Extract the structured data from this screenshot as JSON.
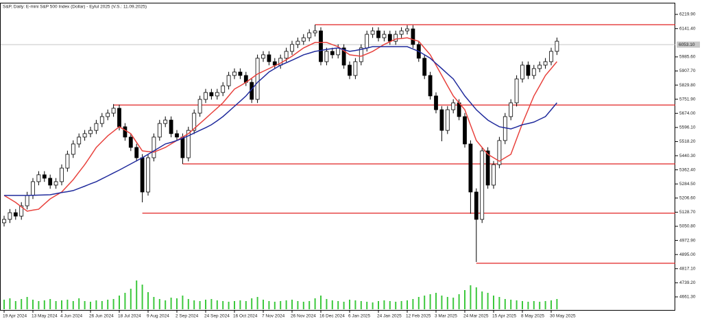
{
  "chart_data": {
    "type": "candlestick",
    "title": "S&P, Daily:  E-mini S&P 500 Index (Dollar) - Eylul 2025 (V.S.: 11.09.2025)",
    "categories": [
      "19 Apr 2024",
      null,
      null,
      null,
      null,
      "13 May 2024",
      null,
      null,
      null,
      null,
      "4 Jun 2024",
      null,
      null,
      null,
      null,
      "26 Jun 2024",
      null,
      null,
      null,
      null,
      "18 Jul 2024",
      null,
      null,
      null,
      null,
      "9 Aug 2024",
      null,
      null,
      null,
      null,
      "2 Sep 2024",
      null,
      null,
      null,
      null,
      "24 Sep 2024",
      null,
      null,
      null,
      null,
      "16 Oct 2024",
      null,
      null,
      null,
      null,
      "7 Nov 2024",
      null,
      null,
      null,
      null,
      "26 Nov 2024",
      null,
      null,
      null,
      null,
      "16 Dec 2024",
      null,
      null,
      null,
      null,
      "6 Jan 2025",
      null,
      null,
      null,
      null,
      "24 Jan 2025",
      null,
      null,
      null,
      null,
      "12 Feb 2025",
      null,
      null,
      null,
      null,
      "3 Mar 2025",
      null,
      null,
      null,
      null,
      "24 Mar 2025",
      null,
      null,
      null,
      null,
      "15 Apr 2025",
      null,
      null,
      null,
      null,
      "8 May 2025",
      null,
      null,
      null,
      null,
      "30 May 2025",
      null
    ],
    "open": [
      5070,
      5089,
      5126,
      5107,
      5164,
      5221,
      5297,
      5335,
      5316,
      5278,
      5297,
      5372,
      5448,
      5505,
      5543,
      5562,
      5580,
      5618,
      5656,
      5675,
      5702,
      5600,
      5543,
      5486,
      5429,
      5240,
      5429,
      5543,
      5618,
      5637,
      5562,
      5543,
      5429,
      5580,
      5675,
      5751,
      5789,
      5770,
      5789,
      5826,
      5883,
      5902,
      5883,
      5845,
      5751,
      5978,
      5997,
      5959,
      5940,
      5978,
      6016,
      6054,
      6072,
      6091,
      6118,
      6129,
      5959,
      6016,
      5997,
      6035,
      5940,
      5883,
      5959,
      6035,
      6110,
      6129,
      6091,
      6110,
      6072,
      6110,
      6129,
      6140,
      6054,
      5978,
      5883,
      5770,
      5694,
      5580,
      5694,
      5732,
      5656,
      5505,
      5240,
      5089,
      5467,
      5278,
      5391,
      5524,
      5656,
      5732,
      5864,
      5940,
      5883,
      5921,
      5940,
      5959,
      6016
    ],
    "high": [
      5109,
      5146,
      5146,
      5184,
      5241,
      5317,
      5355,
      5355,
      5336,
      5317,
      5392,
      5468,
      5525,
      5563,
      5582,
      5600,
      5638,
      5676,
      5695,
      5725,
      5722,
      5620,
      5563,
      5506,
      5449,
      5449,
      5563,
      5638,
      5657,
      5657,
      5582,
      5563,
      5600,
      5695,
      5771,
      5809,
      5809,
      5809,
      5846,
      5903,
      5922,
      5922,
      5903,
      5865,
      5998,
      6017,
      6017,
      5979,
      5998,
      6036,
      6074,
      6092,
      6111,
      6138,
      6163,
      6149,
      6036,
      6036,
      6055,
      6055,
      5960,
      5979,
      6055,
      6130,
      6149,
      6149,
      6130,
      6130,
      6130,
      6149,
      6160,
      6160,
      6074,
      5998,
      5903,
      5790,
      5714,
      5714,
      5752,
      5752,
      5676,
      5525,
      5260,
      5487,
      5487,
      5411,
      5544,
      5676,
      5752,
      5884,
      5960,
      5960,
      5941,
      5960,
      5979,
      6036,
      6092
    ],
    "low": [
      5050,
      5069,
      5087,
      5087,
      5144,
      5201,
      5277,
      5296,
      5258,
      5258,
      5277,
      5352,
      5428,
      5485,
      5523,
      5542,
      5560,
      5598,
      5636,
      5655,
      5580,
      5523,
      5466,
      5409,
      5183,
      5220,
      5409,
      5523,
      5598,
      5542,
      5523,
      5395,
      5409,
      5560,
      5655,
      5731,
      5750,
      5750,
      5769,
      5806,
      5863,
      5863,
      5825,
      5731,
      5731,
      5958,
      5939,
      5920,
      5920,
      5958,
      5996,
      6034,
      6052,
      6071,
      6098,
      5939,
      5939,
      5977,
      5977,
      5920,
      5863,
      5863,
      5939,
      6015,
      6090,
      6071,
      6071,
      6052,
      6052,
      6090,
      6109,
      6034,
      5958,
      5863,
      5750,
      5674,
      5520,
      5560,
      5674,
      5636,
      5485,
      5120,
      4854,
      5069,
      5258,
      5258,
      5371,
      5504,
      5636,
      5712,
      5844,
      5863,
      5863,
      5901,
      5920,
      5939,
      5996
    ],
    "close": [
      5089,
      5126,
      5107,
      5164,
      5221,
      5297,
      5335,
      5316,
      5278,
      5297,
      5372,
      5448,
      5505,
      5543,
      5562,
      5580,
      5618,
      5656,
      5675,
      5702,
      5600,
      5543,
      5486,
      5429,
      5240,
      5429,
      5543,
      5618,
      5637,
      5562,
      5543,
      5429,
      5580,
      5675,
      5751,
      5789,
      5770,
      5789,
      5826,
      5883,
      5902,
      5883,
      5845,
      5751,
      5978,
      5997,
      5959,
      5940,
      5978,
      6016,
      6054,
      6072,
      6091,
      6118,
      6129,
      5959,
      6016,
      5997,
      6035,
      5940,
      5883,
      5959,
      6035,
      6110,
      6129,
      6091,
      6110,
      6072,
      6110,
      6129,
      6140,
      6054,
      5978,
      5883,
      5770,
      5694,
      5580,
      5694,
      5732,
      5656,
      5505,
      5240,
      5089,
      5467,
      5278,
      5391,
      5524,
      5656,
      5732,
      5864,
      5940,
      5883,
      5921,
      5940,
      5959,
      6016,
      6072
    ],
    "volume": [
      14,
      16,
      12,
      15,
      18,
      14,
      12,
      13,
      15,
      12,
      13,
      14,
      12,
      16,
      12,
      11,
      13,
      12,
      14,
      15,
      20,
      24,
      30,
      42,
      36,
      25,
      18,
      15,
      13,
      17,
      16,
      20,
      15,
      13,
      12,
      14,
      15,
      13,
      12,
      11,
      12,
      13,
      12,
      16,
      18,
      14,
      12,
      11,
      12,
      13,
      14,
      12,
      11,
      12,
      16,
      20,
      15,
      13,
      12,
      11,
      14,
      13,
      12,
      11,
      10,
      12,
      13,
      12,
      11,
      12,
      13,
      15,
      18,
      20,
      22,
      24,
      20,
      18,
      17,
      22,
      28,
      35,
      32,
      26,
      24,
      20,
      18,
      15,
      14,
      13,
      12,
      11,
      12,
      11,
      12,
      13,
      15
    ],
    "volume_lim": [
      0,
      100
    ],
    "volume_color": "#3cc83c",
    "up_color": "#ffffff",
    "down_color": "#000000",
    "lines": [
      {
        "color": "#e8413c",
        "values": [
          5221,
          5202,
          5183,
          5158,
          5134,
          5140,
          5145,
          5174,
          5202,
          5221,
          5240,
          5274,
          5308,
          5350,
          5391,
          5438,
          5486,
          5518,
          5550,
          5575,
          5600,
          5581,
          5562,
          5514,
          5467,
          5463,
          5460,
          5473,
          5486,
          5505,
          5524,
          5543,
          5562,
          5590,
          5618,
          5646,
          5675,
          5703,
          5732,
          5770,
          5808,
          5826,
          5845,
          5868,
          5891,
          5906,
          5921,
          5936,
          5951,
          5970,
          5989,
          6012,
          6035,
          6050,
          6065,
          6065,
          6065,
          6053,
          6042,
          6019,
          5997,
          5993,
          5989,
          6002,
          6016,
          6035,
          6054,
          6069,
          6084,
          6087,
          6091,
          6081,
          6072,
          6034,
          5997,
          5940,
          5883,
          5826,
          5770,
          5732,
          5694,
          5609,
          5524,
          5486,
          5448,
          5429,
          5410,
          5429,
          5448,
          5533,
          5618,
          5694,
          5770,
          5826,
          5883,
          5921,
          5959
        ]
      },
      {
        "color": "#1f2a9c",
        "values": [
          5221,
          5221,
          5221,
          5221,
          5221,
          5222,
          5223,
          5224,
          5225,
          5231,
          5237,
          5242,
          5248,
          5260,
          5272,
          5285,
          5297,
          5313,
          5329,
          5345,
          5361,
          5378,
          5395,
          5412,
          5429,
          5448,
          5467,
          5486,
          5505,
          5514,
          5524,
          5537,
          5550,
          5565,
          5580,
          5595,
          5611,
          5633,
          5656,
          5684,
          5713,
          5741,
          5770,
          5807,
          5845,
          5873,
          5902,
          5921,
          5940,
          5953,
          5967,
          5982,
          5997,
          6006,
          6016,
          6021,
          6027,
          6031,
          6035,
          6025,
          6016,
          6021,
          6027,
          6034,
          6042,
          6042,
          6042,
          6042,
          6042,
          6042,
          6042,
          6029,
          6016,
          5997,
          5978,
          5949,
          5921,
          5892,
          5864,
          5817,
          5770,
          5732,
          5694,
          5665,
          5637,
          5618,
          5600,
          5594,
          5588,
          5599,
          5611,
          5618,
          5626,
          5641,
          5656,
          5694,
          5732
        ]
      }
    ],
    "levels": [
      {
        "value": 6163,
        "start": 54,
        "color": "#e02020"
      },
      {
        "value": 5720,
        "start": 19,
        "color": "#e02020"
      },
      {
        "value": 5395,
        "start": 31,
        "color": "#e02020"
      },
      {
        "value": 5123,
        "start": 24,
        "color": "#e02020"
      },
      {
        "value": 4847,
        "start": 82,
        "color": "#e02020"
      }
    ],
    "last_price": {
      "value": 6053.1,
      "label": "6053.10"
    },
    "ylim": [
      4589.2,
      6280.4
    ],
    "yticks": [
      {
        "value": 6219.9,
        "label": "6219.90"
      },
      {
        "value": 6141.4,
        "label": "6141.40"
      },
      {
        "value": 5985.6,
        "label": "5985.60"
      },
      {
        "value": 5907.7,
        "label": "5907.70"
      },
      {
        "value": 5829.8,
        "label": "5829.80"
      },
      {
        "value": 5751.9,
        "label": "5751.90"
      },
      {
        "value": 5674,
        "label": "5674.00"
      },
      {
        "value": 5596.1,
        "label": "5596.10"
      },
      {
        "value": 5518.2,
        "label": "5518.20"
      },
      {
        "value": 5440.3,
        "label": "5440.30"
      },
      {
        "value": 5362.4,
        "label": "5362.40"
      },
      {
        "value": 5284.5,
        "label": "5284.50"
      },
      {
        "value": 5206.6,
        "label": "5206.60"
      },
      {
        "value": 5128.7,
        "label": "5128.70"
      },
      {
        "value": 5050.8,
        "label": "5050.80"
      },
      {
        "value": 4972.9,
        "label": "4972.90"
      },
      {
        "value": 4895,
        "label": "4895.00"
      },
      {
        "value": 4817.1,
        "label": "4817.10"
      },
      {
        "value": 4739.2,
        "label": "4739.20"
      },
      {
        "value": 4661.3,
        "label": "4661.30"
      }
    ]
  }
}
